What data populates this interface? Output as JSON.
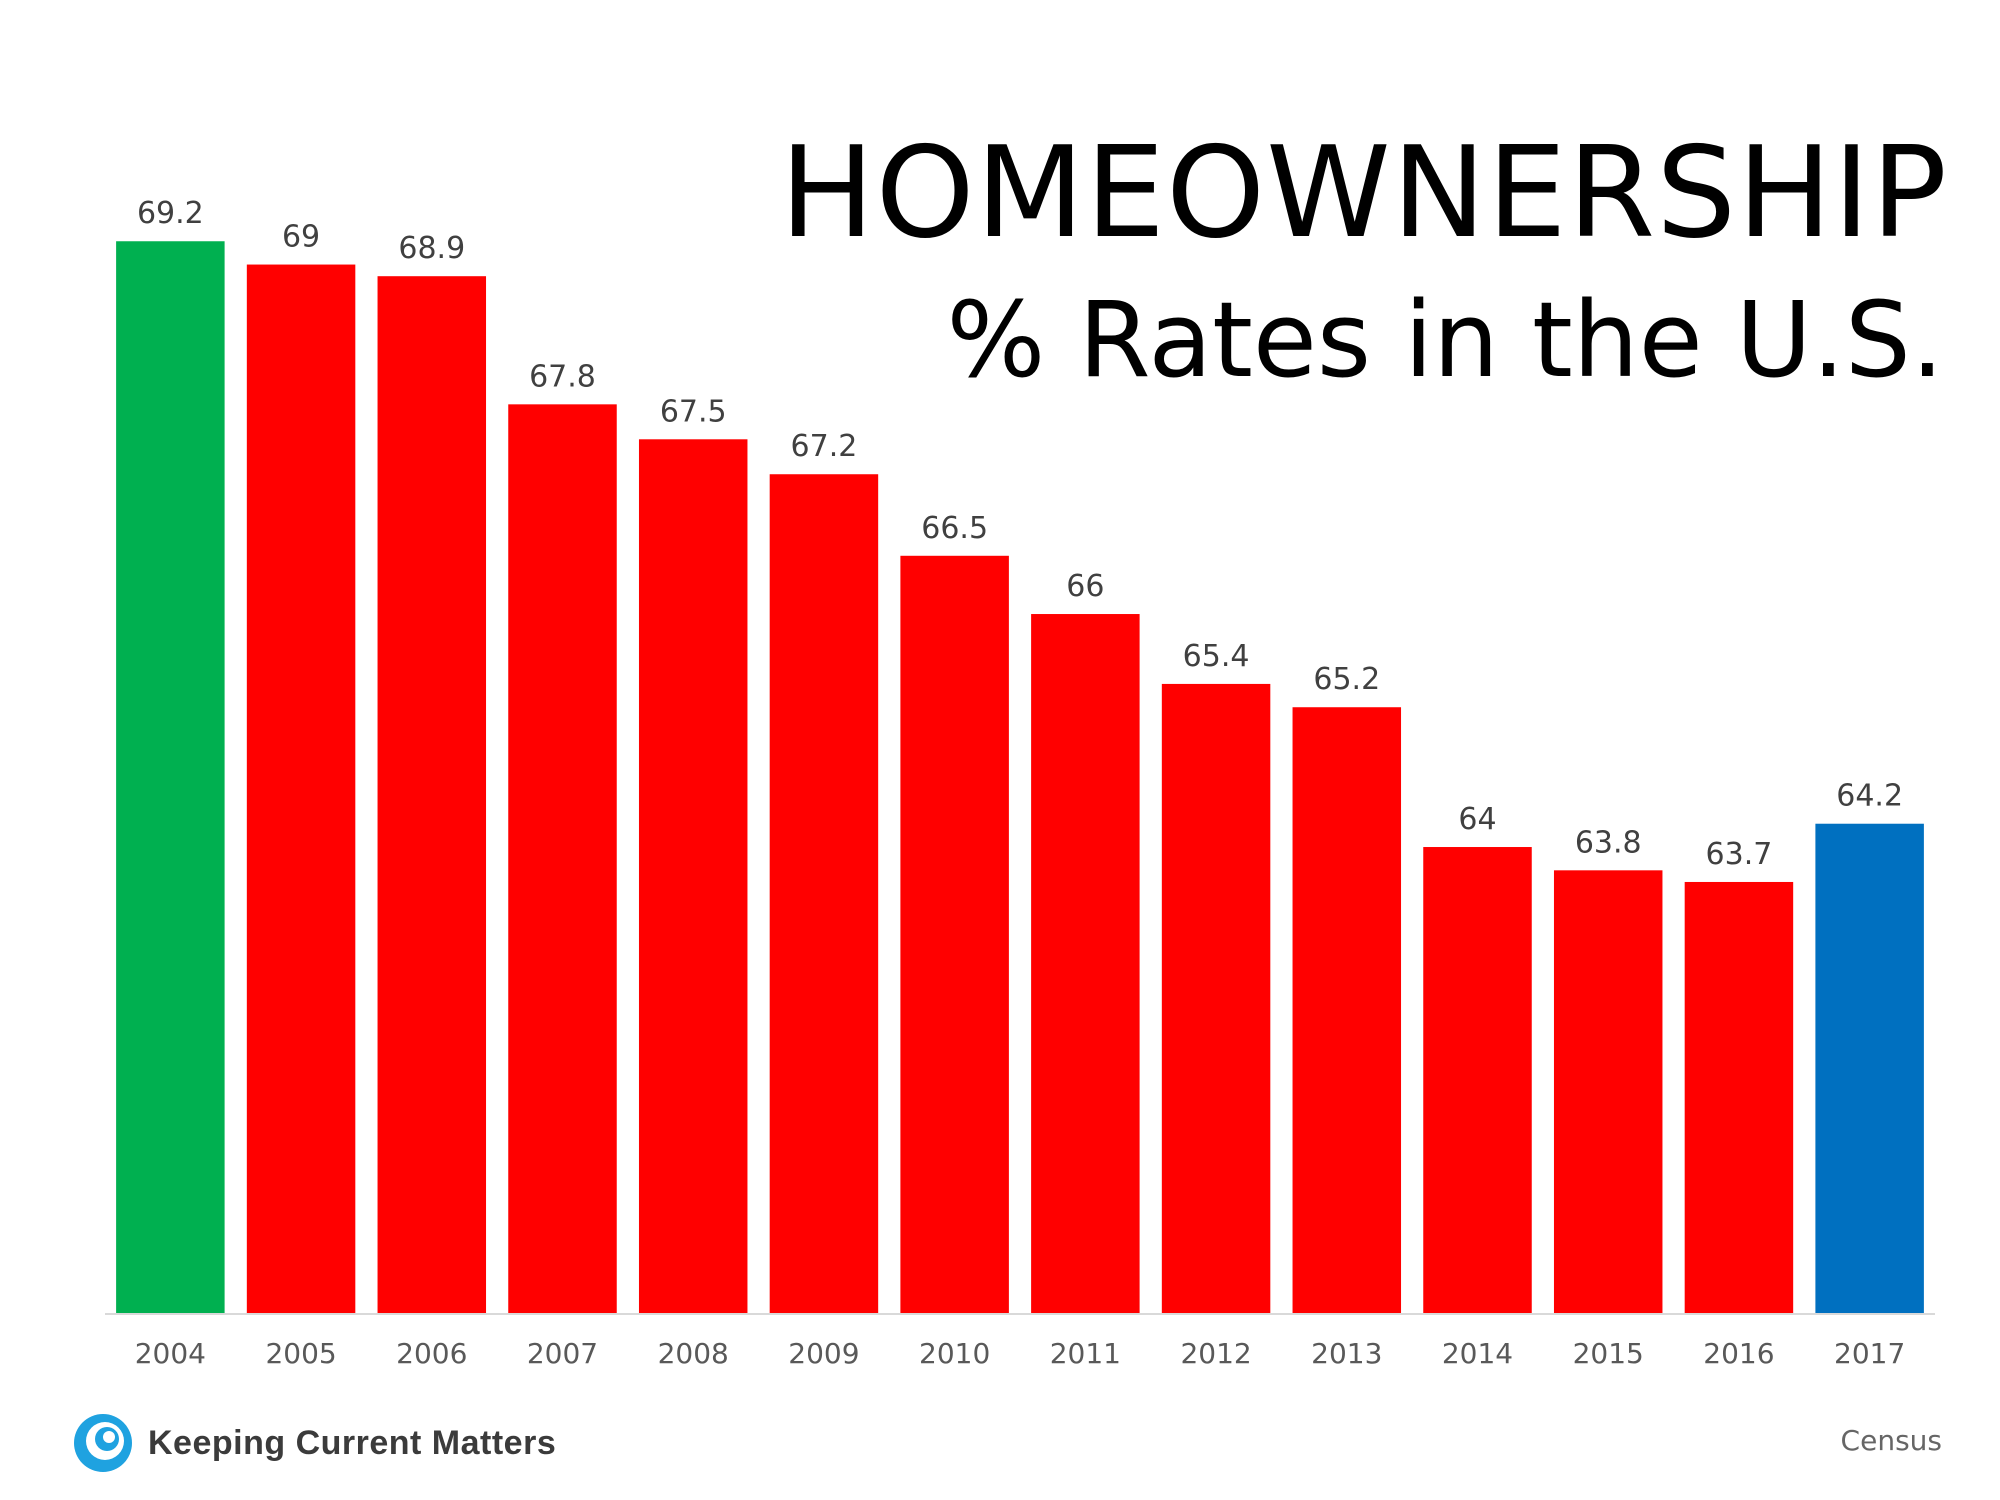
{
  "chart_data": {
    "type": "bar",
    "title": "HOMEOWNERSHIP",
    "subtitle": "% Rates in the U.S.",
    "categories": [
      "2004",
      "2005",
      "2006",
      "2007",
      "2008",
      "2009",
      "2010",
      "2011",
      "2012",
      "2013",
      "2014",
      "2015",
      "2016",
      "2017"
    ],
    "values": [
      69.2,
      69,
      68.9,
      67.8,
      67.5,
      67.2,
      66.5,
      66,
      65.4,
      65.2,
      64,
      63.8,
      63.7,
      64.2
    ],
    "value_labels": [
      "69.2",
      "69",
      "68.9",
      "67.8",
      "67.5",
      "67.2",
      "66.5",
      "66",
      "65.4",
      "65.2",
      "64",
      "63.8",
      "63.7",
      "64.2"
    ],
    "bar_colors": [
      "#00b050",
      "#ff0000",
      "#ff0000",
      "#ff0000",
      "#ff0000",
      "#ff0000",
      "#ff0000",
      "#ff0000",
      "#ff0000",
      "#ff0000",
      "#ff0000",
      "#ff0000",
      "#ff0000",
      "#0070c0"
    ],
    "ylim": [
      60,
      69.7
    ],
    "xlabel": "",
    "ylabel": "",
    "grid": false,
    "legend": "none"
  },
  "brand": {
    "name": "Keeping Current Matters",
    "logo_icon": "swirl-icon",
    "accent": "#1fa2e0"
  },
  "source": "Census"
}
